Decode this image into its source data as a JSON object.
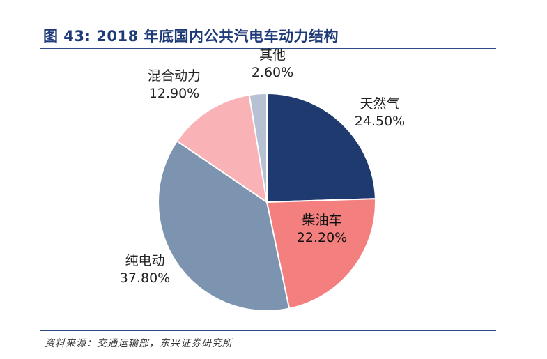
{
  "title": "图 43: 2018 年底国内公共汽电车动力结构",
  "source": "资料来源：交通运输部，东兴证券研究所",
  "chart_data": {
    "type": "pie",
    "slices": [
      {
        "label": "天然气",
        "value_label": "24.50%",
        "value": 24.5,
        "color": "#1f3a6e",
        "text_color": "#222222"
      },
      {
        "label": "柴油车",
        "value_label": "22.20%",
        "value": 22.2,
        "color": "#f47f7f",
        "text_color": "#111111"
      },
      {
        "label": "纯电动",
        "value_label": "37.80%",
        "value": 37.8,
        "color": "#7d94b0",
        "text_color": "#222222"
      },
      {
        "label": "混合动力",
        "value_label": "12.90%",
        "value": 12.9,
        "color": "#f9b3b6",
        "text_color": "#222222"
      },
      {
        "label": "其他",
        "value_label": "2.60%",
        "value": 2.6,
        "color": "#b6c2d4",
        "text_color": "#222222"
      }
    ],
    "start_angle_deg": 0,
    "direction": "clockwise",
    "legend": "none"
  }
}
